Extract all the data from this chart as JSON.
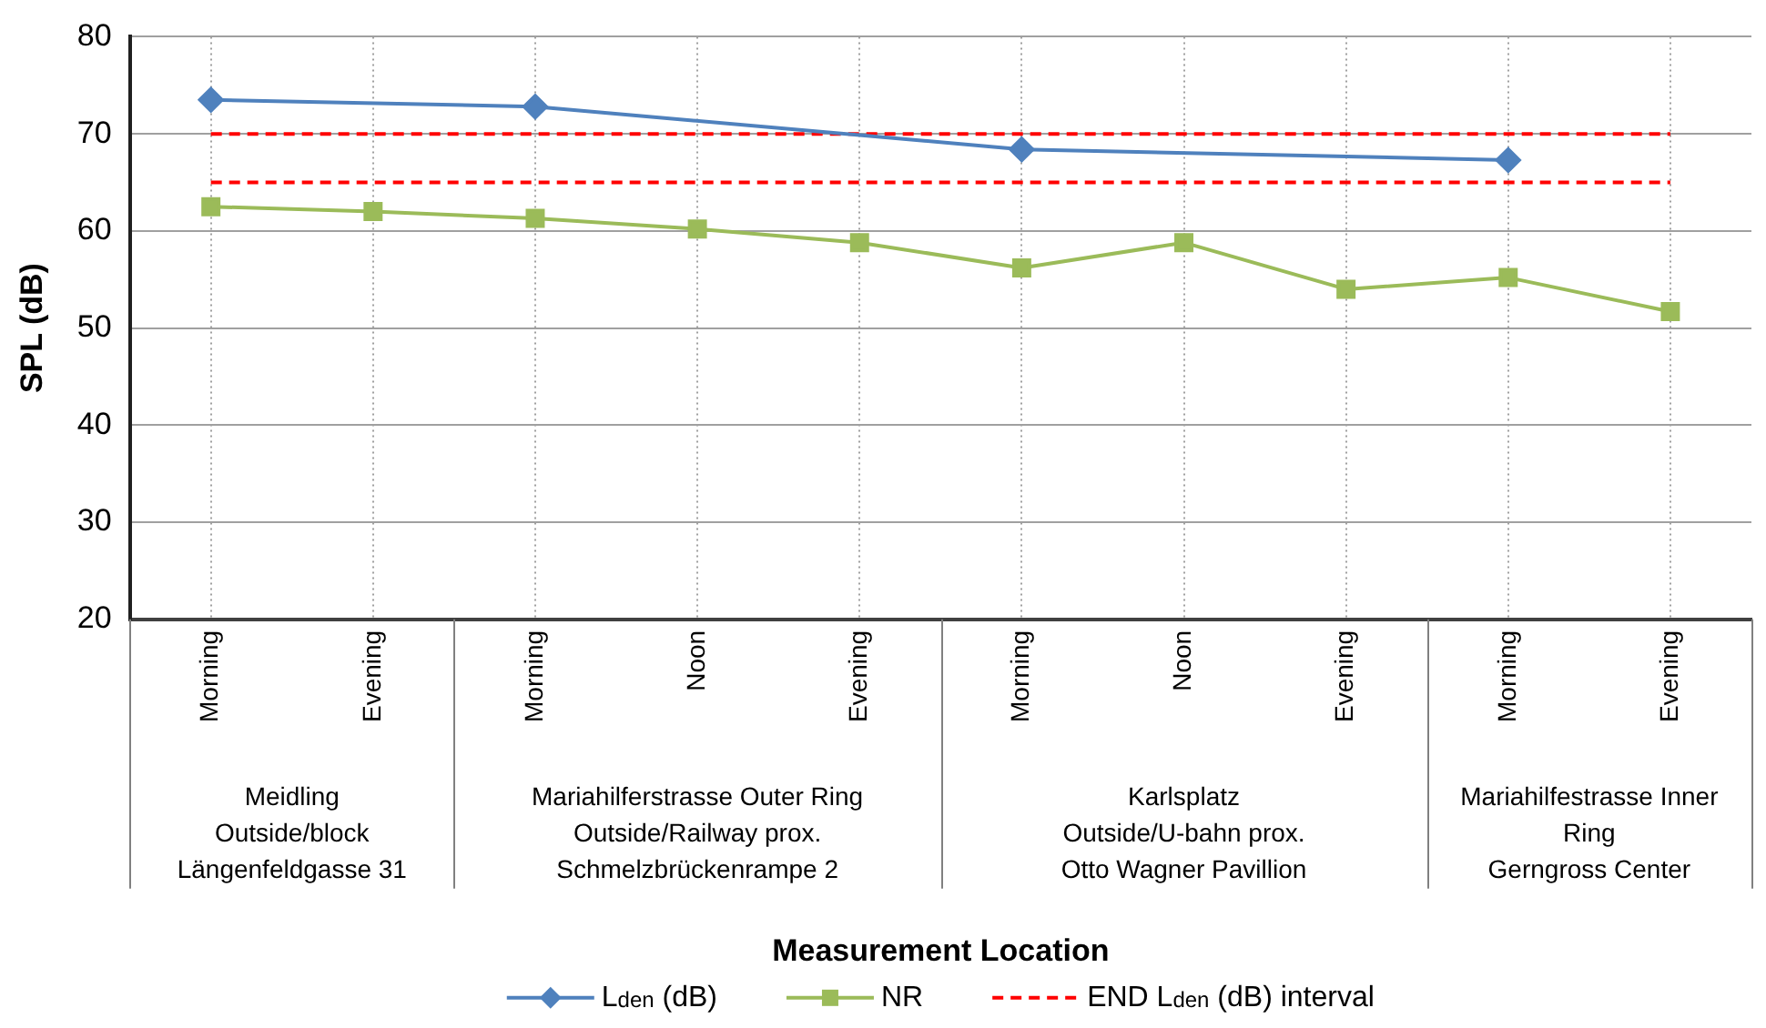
{
  "chart_data": {
    "type": "line",
    "ylabel": "SPL (dB)",
    "categories": [
      "Morning",
      "Evening",
      "Morning",
      "Noon",
      "Evening",
      "Morning",
      "Noon",
      "Evening",
      "Morning",
      "Evening"
    ],
    "annotations": [
      "Meidling\nOutside/block\nLängenfeldgasse 31",
      "Mariahilferstrasse Outer Ring\nOutside/Railway prox.\nSchmelzbrückenrampe 2",
      "Karlsplatz\nOutside/U-bahn prox.\nOtto Wagner Pavillion",
      "Mariahilfestrasse Inner\nRing\nGerngross Center",
      "Measurement Location"
    ],
    "series": [
      {
        "name": "L$_{den}$ (dB)",
        "color": "#4f81bd",
        "marker": "diamond",
        "line_style": "solid",
        "values": [
          73.5,
          null,
          72.8,
          null,
          null,
          68.4,
          null,
          null,
          67.3,
          null
        ]
      },
      {
        "name": "NR",
        "color": "#9bbb59",
        "marker": "square",
        "line_style": "solid",
        "values": [
          62.5,
          62,
          61.3,
          60.2,
          58.8,
          56.2,
          58.8,
          54,
          55.2,
          51.7
        ]
      },
      {
        "name": "END L$_{den}$ (dB) interval",
        "color": "#ff0000",
        "marker": "none",
        "line_style": "dashed",
        "values": [
          70,
          70,
          70,
          70,
          70,
          70,
          70,
          70,
          70,
          70
        ]
      },
      {
        "color": "#ff0000",
        "marker": "none",
        "line_style": "dashed",
        "values": [
          65,
          65,
          65,
          65,
          65,
          65,
          65,
          65,
          65,
          65
        ]
      }
    ],
    "ylim": [
      20,
      80
    ],
    "yticks": [
      20,
      30,
      40,
      50,
      60,
      70,
      80
    ],
    "grid": true,
    "legend": "bottom"
  }
}
